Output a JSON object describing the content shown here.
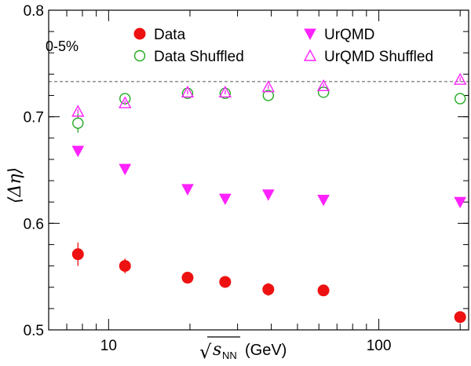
{
  "chart_data": {
    "type": "scatter",
    "title": "",
    "annotation": "0-5%",
    "xlabel_prefix": "√",
    "xlabel_var": "s",
    "xlabel_sub": "NN",
    "xlabel_unit": "(GeV)",
    "ylabel": "⟨Δη⟩",
    "x_scale": "log",
    "xlim": [
      6.0,
      215.0
    ],
    "ylim": [
      0.5,
      0.8
    ],
    "x_major_ticks": [
      10,
      100
    ],
    "x_major_tick_labels": [
      "10",
      "100"
    ],
    "x_minor_ticks": [
      6,
      7,
      8,
      9,
      20,
      30,
      40,
      50,
      60,
      70,
      80,
      90,
      200
    ],
    "y_major_ticks": [
      0.5,
      0.6,
      0.7,
      0.8
    ],
    "y_major_tick_labels": [
      "0.5",
      "0.6",
      "0.7",
      "0.8"
    ],
    "y_minor_step": 0.02,
    "reference_line_y": 0.733,
    "legend_placement": "top",
    "series": [
      {
        "name": "Data",
        "marker": "filled-circle",
        "color": "#ee1111",
        "x": [
          7.7,
          11.5,
          19.6,
          27,
          39,
          62.4,
          200
        ],
        "y": [
          0.571,
          0.56,
          0.549,
          0.545,
          0.538,
          0.537,
          0.512
        ],
        "err": [
          0.011,
          0.007,
          0.004,
          0.003,
          0.006,
          0.003,
          0.003
        ]
      },
      {
        "name": "Data Shuffled",
        "marker": "open-circle",
        "color": "#22aa22",
        "x": [
          7.7,
          11.5,
          19.6,
          27,
          39,
          62.4,
          200
        ],
        "y": [
          0.694,
          0.717,
          0.722,
          0.722,
          0.72,
          0.723,
          0.717
        ],
        "err": [
          0.009,
          0.004,
          0.003,
          0.002,
          0.003,
          0.003,
          0.002
        ]
      },
      {
        "name": "UrQMD",
        "marker": "filled-triangle-down",
        "color": "#ff22ff",
        "x": [
          7.7,
          11.5,
          19.6,
          27,
          39,
          62.4,
          200
        ],
        "y": [
          0.668,
          0.651,
          0.632,
          0.623,
          0.627,
          0.622,
          0.62
        ],
        "err": [
          0.004,
          0.004,
          0.004,
          0.004,
          0.004,
          0.004,
          0.004
        ]
      },
      {
        "name": "UrQMD Shuffled",
        "marker": "open-triangle-up",
        "color": "#ff22ff",
        "x": [
          7.7,
          11.5,
          19.6,
          27,
          39,
          62.4,
          200
        ],
        "y": [
          0.705,
          0.713,
          0.723,
          0.723,
          0.728,
          0.729,
          0.735
        ],
        "err": [
          0.002,
          0.002,
          0.002,
          0.002,
          0.002,
          0.002,
          0.002
        ]
      }
    ]
  }
}
